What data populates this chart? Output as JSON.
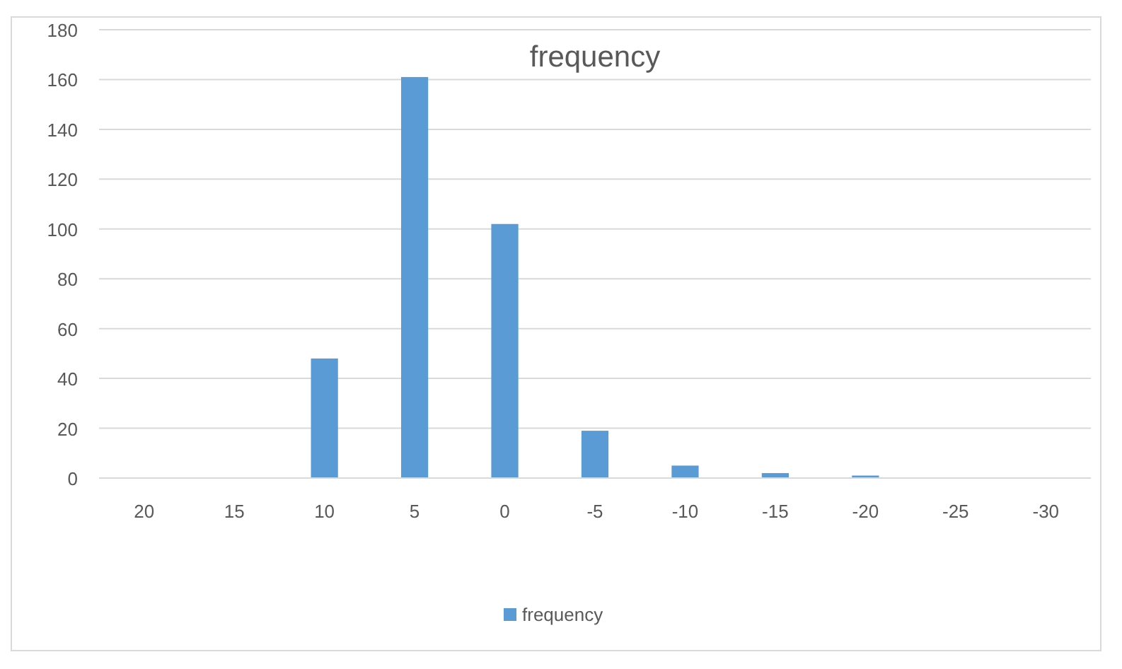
{
  "chart_data": {
    "type": "bar",
    "title": "frequency",
    "categories": [
      "20",
      "15",
      "10",
      "5",
      "0",
      "-5",
      "-10",
      "-15",
      "-20",
      "-25",
      "-30"
    ],
    "series": [
      {
        "name": "frequency",
        "color": "#5b9bd5",
        "values": [
          0,
          0,
          48,
          161,
          102,
          19,
          5,
          2,
          1,
          0,
          0
        ]
      }
    ],
    "ylim": [
      0,
      180
    ],
    "yticks": [
      0,
      20,
      40,
      60,
      80,
      100,
      120,
      140,
      160,
      180
    ],
    "grid": "y",
    "legend": "bottom"
  }
}
